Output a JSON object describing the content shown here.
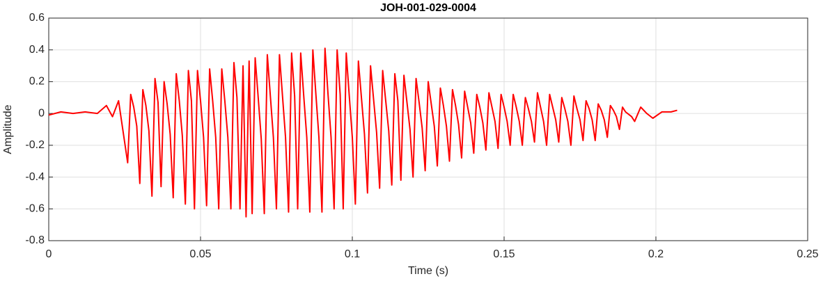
{
  "chart_data": {
    "type": "line",
    "title": "JOH-001-029-0004",
    "x_label": "Time (s)",
    "y_label": "Amplitude",
    "xlim": [
      0,
      0.25
    ],
    "xticks": [
      0,
      0.05,
      0.1,
      0.15,
      0.2,
      0.25
    ],
    "ylim": [
      -0.8,
      0.6
    ],
    "yticks": [
      -0.8,
      -0.6,
      -0.4,
      -0.2,
      0,
      0.2,
      0.4,
      0.6
    ],
    "grid": true,
    "series": [
      {
        "color": "#ff0000",
        "x": [
          0,
          0.004,
          0.008,
          0.012,
          0.016,
          0.019,
          0.021,
          0.023,
          0.026,
          0.027,
          0.028,
          0.029,
          0.03,
          0.031,
          0.032,
          0.033,
          0.034,
          0.035,
          0.036,
          0.037,
          0.038,
          0.039,
          0.04,
          0.041,
          0.042,
          0.043,
          0.044,
          0.045,
          0.046,
          0.047,
          0.048,
          0.049,
          0.05,
          0.051,
          0.052,
          0.053,
          0.054,
          0.055,
          0.056,
          0.057,
          0.058,
          0.059,
          0.06,
          0.061,
          0.062,
          0.063,
          0.064,
          0.065,
          0.066,
          0.067,
          0.068,
          0.069,
          0.07,
          0.071,
          0.072,
          0.073,
          0.074,
          0.075,
          0.076,
          0.077,
          0.078,
          0.079,
          0.08,
          0.081,
          0.082,
          0.083,
          0.084,
          0.085,
          0.086,
          0.087,
          0.088,
          0.089,
          0.09,
          0.091,
          0.092,
          0.093,
          0.094,
          0.095,
          0.096,
          0.097,
          0.098,
          0.099,
          0.1,
          0.101,
          0.102,
          0.103,
          0.104,
          0.105,
          0.106,
          0.107,
          0.108,
          0.109,
          0.11,
          0.111,
          0.112,
          0.113,
          0.114,
          0.115,
          0.116,
          0.117,
          0.118,
          0.119,
          0.12,
          0.121,
          0.122,
          0.123,
          0.124,
          0.125,
          0.126,
          0.127,
          0.128,
          0.129,
          0.13,
          0.131,
          0.132,
          0.133,
          0.134,
          0.135,
          0.136,
          0.137,
          0.138,
          0.139,
          0.14,
          0.141,
          0.142,
          0.143,
          0.144,
          0.145,
          0.146,
          0.147,
          0.148,
          0.149,
          0.15,
          0.151,
          0.152,
          0.153,
          0.154,
          0.155,
          0.156,
          0.157,
          0.158,
          0.159,
          0.16,
          0.161,
          0.162,
          0.163,
          0.164,
          0.165,
          0.166,
          0.167,
          0.168,
          0.169,
          0.17,
          0.171,
          0.172,
          0.173,
          0.174,
          0.175,
          0.176,
          0.177,
          0.178,
          0.179,
          0.18,
          0.181,
          0.182,
          0.183,
          0.184,
          0.185,
          0.186,
          0.187,
          0.188,
          0.189,
          0.19,
          0.192,
          0.193,
          0.195,
          0.197,
          0.199,
          0.202,
          0.205,
          0.207
        ],
        "values": [
          -0.01,
          0.01,
          0,
          0.01,
          0,
          0.05,
          -0.02,
          0.08,
          -0.31,
          0.12,
          0.04,
          -0.08,
          -0.44,
          0.15,
          0.05,
          -0.11,
          -0.52,
          0.22,
          0.07,
          -0.46,
          0.2,
          0.06,
          -0.13,
          -0.53,
          0.25,
          0.08,
          -0.14,
          -0.57,
          0.27,
          0.08,
          -0.6,
          0.27,
          0.08,
          -0.15,
          -0.58,
          0.28,
          0.08,
          -0.15,
          -0.6,
          0.28,
          0.08,
          -0.15,
          -0.6,
          0.32,
          0.1,
          -0.6,
          0.3,
          -0.65,
          0.33,
          -0.63,
          0.35,
          0.1,
          -0.16,
          -0.63,
          0.37,
          0.11,
          -0.15,
          -0.6,
          0.37,
          0.11,
          -0.15,
          -0.62,
          0.38,
          0.11,
          -0.6,
          0.38,
          0.11,
          -0.15,
          -0.62,
          0.4,
          0.12,
          -0.15,
          -0.62,
          0.41,
          0.12,
          -0.15,
          -0.6,
          0.4,
          0.12,
          -0.6,
          0.38,
          0.11,
          -0.15,
          -0.57,
          0.33,
          0.1,
          -0.13,
          -0.5,
          0.3,
          0.09,
          -0.12,
          -0.47,
          0.27,
          0.08,
          -0.11,
          -0.45,
          0.25,
          0.08,
          -0.42,
          0.24,
          0.07,
          -0.1,
          -0.4,
          0.22,
          0.07,
          -0.09,
          -0.36,
          0.2,
          0.06,
          -0.08,
          -0.33,
          0.16,
          0.05,
          -0.08,
          -0.3,
          0.15,
          0.05,
          -0.07,
          -0.28,
          0.14,
          0.04,
          -0.06,
          -0.25,
          0.12,
          0.04,
          -0.06,
          -0.23,
          0.13,
          0.04,
          -0.05,
          -0.22,
          0.12,
          0.04,
          -0.05,
          -0.2,
          0.12,
          0.04,
          -0.05,
          -0.2,
          0.1,
          0.03,
          -0.05,
          -0.18,
          0.13,
          0.04,
          -0.05,
          -0.2,
          0.12,
          0.04,
          -0.04,
          -0.18,
          0.1,
          0.03,
          -0.05,
          -0.2,
          0.11,
          0.03,
          -0.04,
          -0.17,
          0.08,
          0.03,
          -0.04,
          -0.17,
          0.06,
          0.02,
          -0.04,
          -0.15,
          0.05,
          0.02,
          -0.02,
          -0.1,
          0.04,
          0.01,
          -0.02,
          -0.05,
          0.04,
          0,
          -0.03,
          0.01,
          0.01,
          0.02
        ]
      }
    ]
  }
}
